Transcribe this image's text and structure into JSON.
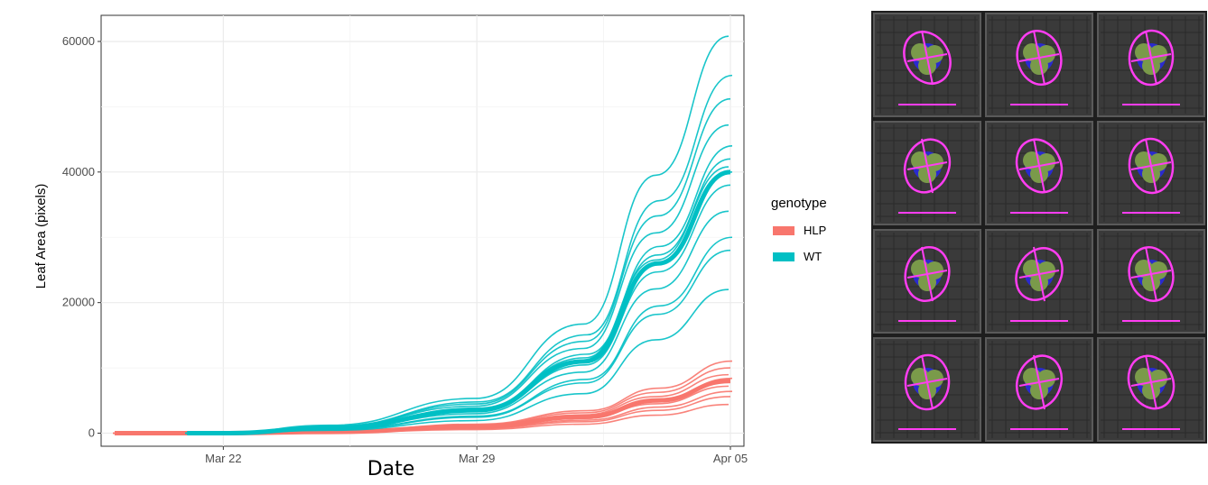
{
  "chart_data": {
    "type": "line",
    "title": "",
    "xlabel": "Date",
    "ylabel": "Leaf Area (pixels)",
    "x_ticks": [
      "Mar 22",
      "Mar 29",
      "Apr 05"
    ],
    "x_range": [
      "2023-03-19",
      "2023-04-05"
    ],
    "y_ticks": [
      0,
      20000,
      40000,
      60000
    ],
    "ylim": [
      -2000,
      64000
    ],
    "grid": true,
    "legend": {
      "title": "genotype",
      "position": "right",
      "entries": [
        {
          "name": "HLP",
          "color": "#F8766D"
        },
        {
          "name": "WT",
          "color": "#00BFC4"
        }
      ]
    },
    "series": [
      {
        "name": "HLP",
        "color": "#F8766D",
        "x": [
          "2023-03-19",
          "2023-03-22",
          "2023-03-25",
          "2023-03-29",
          "2023-04-01",
          "2023-04-03",
          "2023-04-05"
        ],
        "values": [
          0,
          0,
          200,
          1000,
          2500,
          5000,
          8000
        ]
      },
      {
        "name": "WT",
        "color": "#00BFC4",
        "x": [
          "2023-03-21",
          "2023-03-22",
          "2023-03-25",
          "2023-03-29",
          "2023-04-01",
          "2023-04-03",
          "2023-04-05"
        ],
        "values": [
          0,
          0,
          800,
          3500,
          11000,
          26000,
          40000
        ]
      }
    ]
  },
  "photo": {
    "description_icon": "plant-tray-photo",
    "pot_count": 12
  }
}
